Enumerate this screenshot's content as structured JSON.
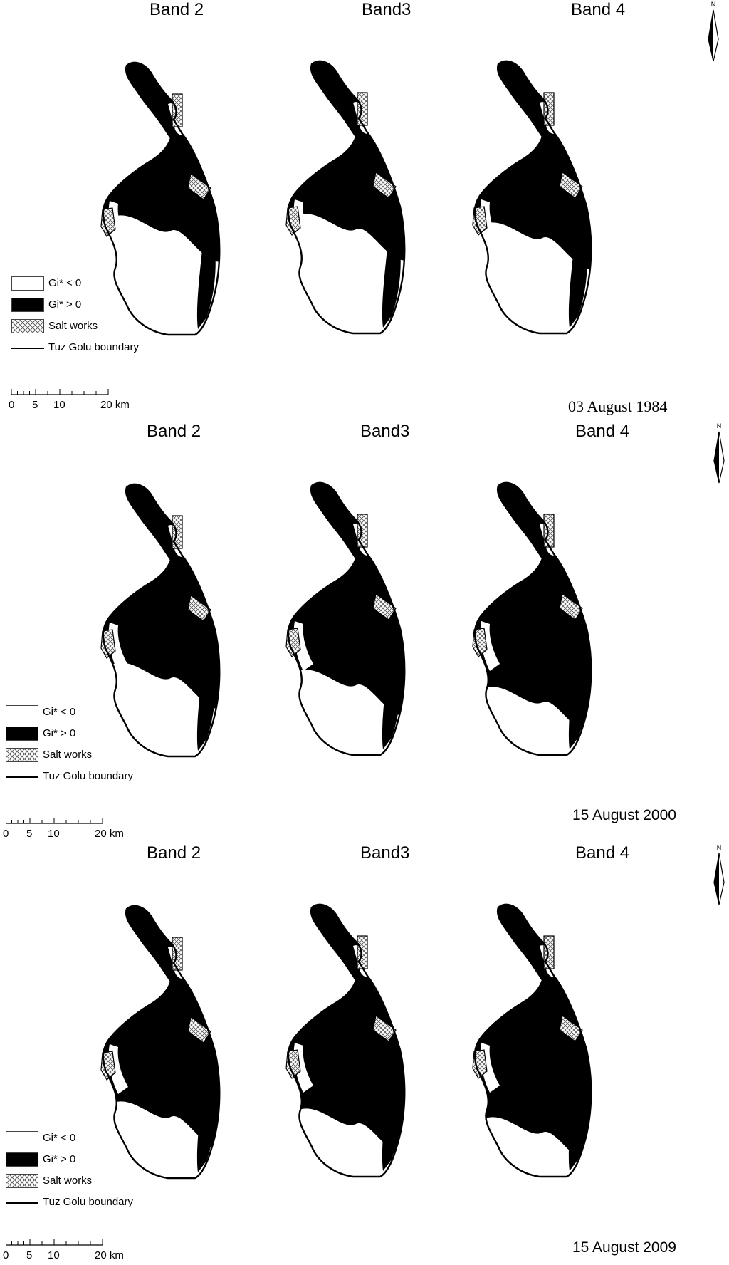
{
  "rows": [
    {
      "date": "03 August 1984",
      "bands": [
        "Band 2",
        "Band3",
        "Band 4"
      ],
      "legend": [
        "Gi* < 0",
        "Gi* > 0",
        "Salt works",
        "Tuz Golu boundary"
      ],
      "scale": {
        "ticks": [
          "0",
          "5",
          "10",
          "20 km"
        ]
      },
      "north": "N",
      "dark_extent": [
        0.55,
        0.55,
        0.6
      ]
    },
    {
      "date": "15 August 2000",
      "bands": [
        "Band 2",
        "Band3",
        "Band 4"
      ],
      "legend": [
        "Gi* < 0",
        "Gi* > 0",
        "Salt works",
        "Tuz Golu boundary"
      ],
      "scale": {
        "ticks": [
          "0",
          "5",
          "10",
          "20 km"
        ]
      },
      "north": "N",
      "dark_extent": [
        0.7,
        0.75,
        0.85
      ]
    },
    {
      "date": "15 August 2009",
      "bands": [
        "Band 2",
        "Band3",
        "Band 4"
      ],
      "legend": [
        "Gi* < 0",
        "Gi* > 0",
        "Salt works",
        "Tuz Golu boundary"
      ],
      "scale": {
        "ticks": [
          "0",
          "5",
          "10",
          "20 km"
        ]
      },
      "north": "N",
      "dark_extent": [
        0.8,
        0.85,
        0.9
      ]
    }
  ]
}
